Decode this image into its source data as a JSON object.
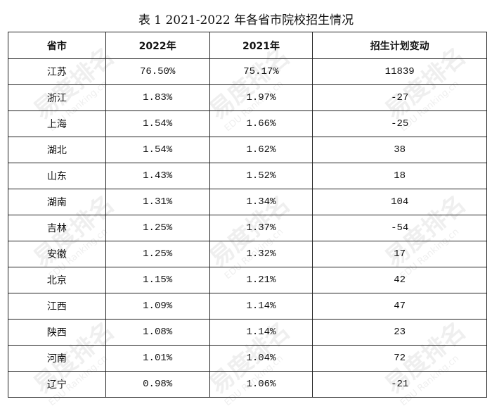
{
  "title": "表 1 2021-2022 年各省市院校招生情况",
  "watermark": {
    "brand": "易度排名",
    "sub": "EDU Ranking.cn"
  },
  "table": {
    "headers": [
      "省市",
      "2022年",
      "2021年",
      "招生计划变动"
    ],
    "rows": [
      [
        "江苏",
        "76.50%",
        "75.17%",
        "11839"
      ],
      [
        "浙江",
        "1.83%",
        "1.97%",
        "-27"
      ],
      [
        "上海",
        "1.54%",
        "1.66%",
        "-25"
      ],
      [
        "湖北",
        "1.54%",
        "1.62%",
        "38"
      ],
      [
        "山东",
        "1.43%",
        "1.52%",
        "18"
      ],
      [
        "湖南",
        "1.31%",
        "1.34%",
        "104"
      ],
      [
        "吉林",
        "1.25%",
        "1.37%",
        "-54"
      ],
      [
        "安徽",
        "1.25%",
        "1.32%",
        "17"
      ],
      [
        "北京",
        "1.15%",
        "1.21%",
        "42"
      ],
      [
        "江西",
        "1.09%",
        "1.14%",
        "47"
      ],
      [
        "陕西",
        "1.08%",
        "1.14%",
        "23"
      ],
      [
        "河南",
        "1.01%",
        "1.04%",
        "72"
      ],
      [
        "辽宁",
        "0.98%",
        "1.06%",
        "-21"
      ]
    ]
  }
}
